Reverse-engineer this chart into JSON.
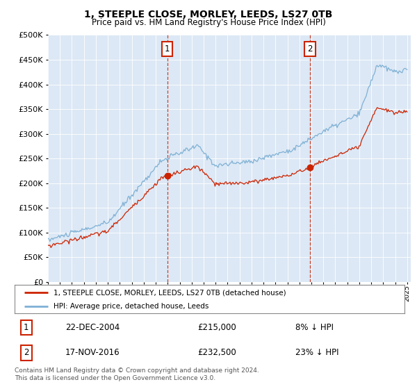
{
  "title": "1, STEEPLE CLOSE, MORLEY, LEEDS, LS27 0TB",
  "subtitle": "Price paid vs. HM Land Registry's House Price Index (HPI)",
  "legend_entry1": "1, STEEPLE CLOSE, MORLEY, LEEDS, LS27 0TB (detached house)",
  "legend_entry2": "HPI: Average price, detached house, Leeds",
  "sale1_date": "22-DEC-2004",
  "sale1_price": 215000,
  "sale1_label": "1",
  "sale1_pct": "8% ↓ HPI",
  "sale2_date": "17-NOV-2016",
  "sale2_price": 232500,
  "sale2_label": "2",
  "sale2_pct": "23% ↓ HPI",
  "footnote1": "Contains HM Land Registry data © Crown copyright and database right 2024.",
  "footnote2": "This data is licensed under the Open Government Licence v3.0.",
  "hpi_color": "#7eb0d5",
  "price_color": "#cc2200",
  "marker_box_color": "#cc2200",
  "background_color": "#dce8f5",
  "grid_color": "#ffffff",
  "ylim_min": 0,
  "ylim_max": 500000,
  "yticks": [
    0,
    50000,
    100000,
    150000,
    200000,
    250000,
    300000,
    350000,
    400000,
    450000,
    500000
  ],
  "sale1_t": 2004.96,
  "sale2_t": 2016.88
}
